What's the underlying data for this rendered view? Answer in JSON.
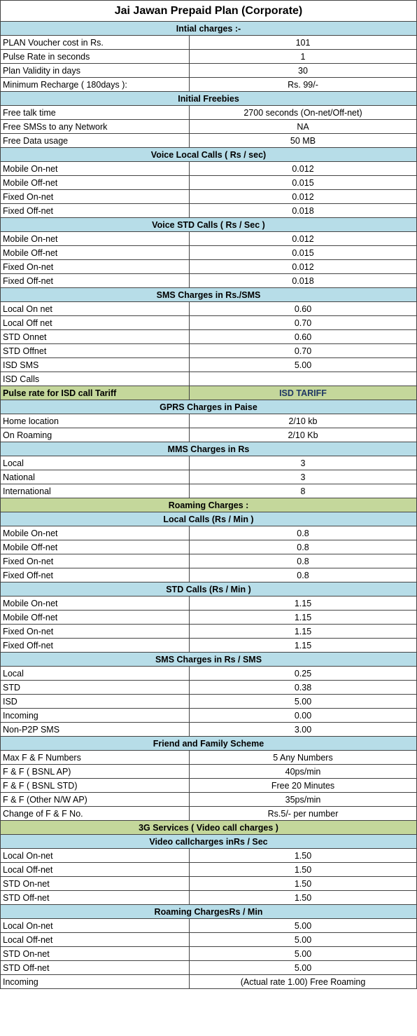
{
  "title": "Jai Jawan Prepaid Plan (Corporate)",
  "table": {
    "rows": [
      {
        "heading": "Intial charges :-"
      },
      {
        "cells": [
          "PLAN Voucher cost in Rs.",
          "101"
        ]
      },
      {
        "cells": [
          "Pulse Rate in seconds",
          "1"
        ]
      },
      {
        "cells": [
          "Plan Validity in days",
          "30"
        ]
      },
      {
        "cells": [
          "Minimum Recharge ( 180days ):",
          "Rs. 99/-"
        ]
      },
      {
        "heading": "Initial Freebies"
      },
      {
        "cells": [
          "Free talk time",
          "2700 seconds (On-net/Off-net)"
        ]
      },
      {
        "cells": [
          "Free SMSs to any Network",
          "NA"
        ]
      },
      {
        "cells": [
          "Free Data usage",
          "50 MB"
        ]
      },
      {
        "heading": "Voice Local Calls ( Rs / sec)"
      },
      {
        "cells": [
          "Mobile On-net",
          "0.012"
        ]
      },
      {
        "cells": [
          "Mobile Off-net",
          "0.015"
        ]
      },
      {
        "cells": [
          "Fixed On-net",
          "0.012"
        ]
      },
      {
        "cells": [
          "Fixed Off-net",
          "0.018"
        ]
      },
      {
        "heading": "Voice STD Calls ( Rs / Sec )"
      },
      {
        "cells": [
          "Mobile On-net",
          "0.012"
        ]
      },
      {
        "cells": [
          "Mobile Off-net",
          "0.015"
        ]
      },
      {
        "cells": [
          "Fixed On-net",
          "0.012"
        ]
      },
      {
        "cells": [
          "Fixed Off-net",
          "0.018"
        ]
      },
      {
        "heading": "SMS Charges in Rs./SMS"
      },
      {
        "cells": [
          "Local On net",
          "0.60"
        ]
      },
      {
        "cells": [
          "Local Off net",
          "0.70"
        ]
      },
      {
        "cells": [
          "STD Onnet",
          "0.60"
        ]
      },
      {
        "cells": [
          "STD Offnet",
          "0.70"
        ]
      },
      {
        "cells": [
          "ISD SMS",
          "5.00"
        ]
      },
      {
        "cells": [
          "ISD Calls"
        ]
      },
      {
        "cells": [
          "Pulse rate for ISD call Tariff",
          "ISD TARIFF"
        ],
        "tone": "green"
      },
      {
        "heading": "GPRS Charges in Paise"
      },
      {
        "cells": [
          "Home location",
          "2/10 kb"
        ]
      },
      {
        "cells": [
          "On Roaming",
          "2/10 Kb"
        ]
      },
      {
        "heading": "MMS Charges in Rs"
      },
      {
        "cells": [
          "Local",
          "3"
        ]
      },
      {
        "cells": [
          "National",
          "3"
        ]
      },
      {
        "cells": [
          "International",
          "8"
        ]
      },
      {
        "heading": "Roaming Charges :",
        "tone": "green"
      },
      {
        "heading": "Local Calls (Rs / Min )"
      },
      {
        "cells": [
          "Mobile On-net",
          "0.8"
        ]
      },
      {
        "cells": [
          "Mobile Off-net",
          "0.8"
        ]
      },
      {
        "cells": [
          "Fixed On-net",
          "0.8"
        ]
      },
      {
        "cells": [
          "Fixed Off-net",
          "0.8"
        ]
      },
      {
        "heading": "STD Calls (Rs / Min )"
      },
      {
        "cells": [
          "Mobile On-net",
          "1.15"
        ]
      },
      {
        "cells": [
          "Mobile Off-net",
          "1.15"
        ]
      },
      {
        "cells": [
          "Fixed On-net",
          "1.15"
        ]
      },
      {
        "cells": [
          "Fixed Off-net",
          "1.15"
        ]
      },
      {
        "heading": "SMS Charges in Rs / SMS"
      },
      {
        "cells": [
          "Local",
          "0.25"
        ]
      },
      {
        "cells": [
          "STD",
          "0.38"
        ]
      },
      {
        "cells": [
          "ISD",
          "5.00"
        ]
      },
      {
        "cells": [
          "Incoming",
          "0.00"
        ]
      },
      {
        "cells": [
          "Non-P2P SMS",
          "3.00"
        ]
      },
      {
        "heading": "Friend and Family Scheme"
      },
      {
        "cells": [
          "Max F & F Numbers",
          "5 Any Numbers"
        ]
      },
      {
        "cells": [
          "F & F ( BSNL AP)",
          "40ps/min"
        ]
      },
      {
        "cells": [
          "F & F ( BSNL STD)",
          "Free 20 Minutes"
        ]
      },
      {
        "cells": [
          "F & F (Other N/W AP)",
          "35ps/min"
        ]
      },
      {
        "cells": [
          "Change of F & F  No.",
          "Rs.5/- per number"
        ]
      },
      {
        "heading": "3G Services ( Video call charges )",
        "tone": "green"
      },
      {
        "heading": "Video callcharges inRs / Sec"
      },
      {
        "cells": [
          "Local On-net",
          "1.50"
        ]
      },
      {
        "cells": [
          "Local Off-net",
          "1.50"
        ]
      },
      {
        "cells": [
          "STD On-net",
          "1.50"
        ]
      },
      {
        "cells": [
          "STD Off-net",
          "1.50"
        ]
      },
      {
        "heading": "Roaming ChargesRs / Min"
      },
      {
        "cells": [
          "Local On-net",
          "5.00"
        ]
      },
      {
        "cells": [
          "Local Off-net",
          "5.00"
        ]
      },
      {
        "cells": [
          "STD On-net",
          "5.00"
        ]
      },
      {
        "cells": [
          "STD Off-net",
          "5.00"
        ]
      },
      {
        "cells": [
          "Incoming",
          "(Actual rate 1.00) Free Roaming"
        ]
      }
    ]
  }
}
